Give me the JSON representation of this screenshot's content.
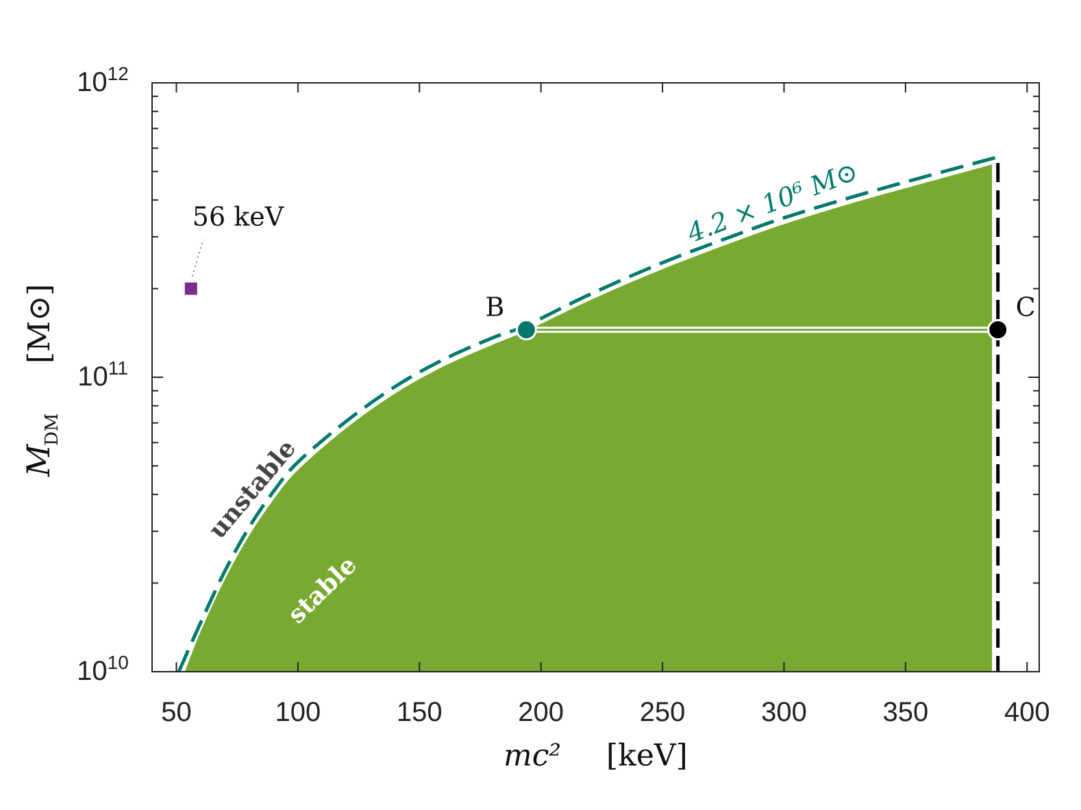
{
  "chart_data": {
    "type": "area",
    "title": "",
    "xlabel": "mc²",
    "xlabel_unit": "[keV]",
    "ylabel": "M_DM",
    "ylabel_sub": "DM",
    "ylabel_unit": "[M⊙]",
    "xlim": [
      40,
      405
    ],
    "ylim": [
      10000000000,
      1000000000000
    ],
    "yscale": "log",
    "grid": false,
    "xticks": [
      50,
      100,
      150,
      200,
      250,
      300,
      350,
      400
    ],
    "xtick_labels": [
      "50",
      "100",
      "150",
      "200",
      "250",
      "300",
      "350",
      "400"
    ],
    "yticks": [
      10000000000,
      100000000000,
      1000000000000
    ],
    "ytick_labels": [
      {
        "base": "10",
        "exp": "10"
      },
      {
        "base": "10",
        "exp": "11"
      },
      {
        "base": "10",
        "exp": "12"
      }
    ],
    "series": [
      {
        "name": "4.2 × 10⁶ M⊙ boundary (stable region)",
        "style": "filled-area",
        "x": [
          53,
          60,
          70,
          80,
          90,
          100,
          120,
          140,
          160,
          180,
          194,
          220,
          250,
          280,
          300,
          330,
          360,
          386
        ],
        "y": [
          10000000000,
          14000000000,
          21000000000,
          29500000000,
          39000000000,
          49000000000,
          68000000000,
          89000000000,
          110000000000,
          130000000000,
          145000000000,
          184000000000,
          235000000000,
          292000000000,
          334000000000,
          398000000000,
          466000000000,
          534000000000
        ]
      },
      {
        "name": "4.2 × 10⁶ M⊙ (dashed)",
        "style": "dashed-line",
        "x": [
          51,
          60,
          70,
          80,
          90,
          100,
          120,
          140,
          160,
          180,
          194,
          220,
          250,
          280,
          300,
          330,
          360,
          388
        ],
        "y": [
          10000000000,
          14700000000,
          22000000000,
          31000000000,
          41000000000,
          51500000000,
          71000000000,
          93000000000,
          115000000000,
          136000000000,
          150000000000,
          191000000000,
          245000000000,
          304000000000,
          348000000000,
          414000000000,
          485000000000,
          560000000000
        ]
      },
      {
        "name": "C limit",
        "style": "vertical-dashed",
        "x": [
          388,
          388
        ],
        "y": [
          10000000000,
          560000000000
        ]
      },
      {
        "name": "B–C",
        "style": "double-line",
        "x": [
          194,
          388
        ],
        "y": [
          145000000000,
          145000000000
        ]
      }
    ],
    "points": [
      {
        "label": "B",
        "x": 194,
        "y": 145000000000,
        "color": "#00796b",
        "marker": "circle"
      },
      {
        "label": "C",
        "x": 388,
        "y": 145000000000,
        "color": "#000000",
        "marker": "circle"
      },
      {
        "label": "56 keV",
        "x": 56,
        "y": 200000000000,
        "color": "#7a2d8c",
        "marker": "square"
      }
    ],
    "annotations": {
      "curve_label": "4.2 × 10⁶ M⊙",
      "unstable": "unstable",
      "stable": "stable",
      "point_56": "56 keV"
    },
    "colors": {
      "fill": "#78a931",
      "dashed": "#00796b",
      "axis": "#222222",
      "limit": "#000000",
      "marker_56": "#7a2d8c"
    }
  }
}
